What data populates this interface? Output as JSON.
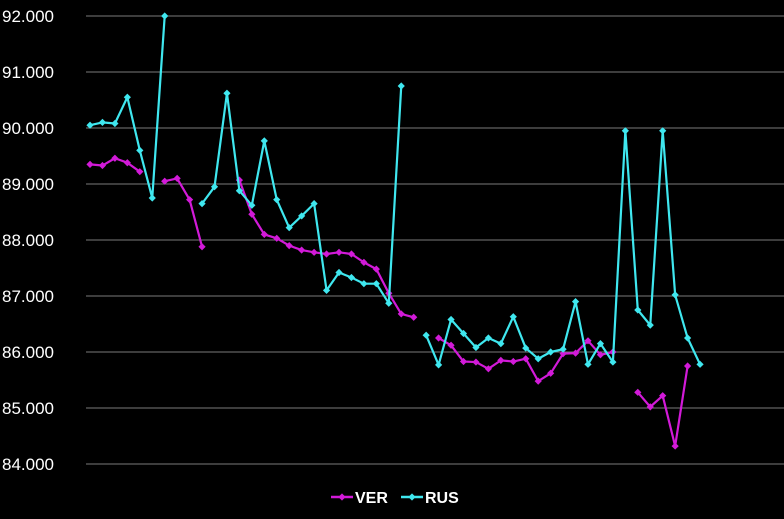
{
  "chart_data": {
    "type": "line",
    "title": "",
    "xlabel": "",
    "ylabel": "",
    "ylim": [
      84,
      92
    ],
    "yticks": [
      "84.000",
      "85.000",
      "86.000",
      "87.000",
      "88.000",
      "89.000",
      "90.000",
      "91.000",
      "92.000"
    ],
    "grid": true,
    "legend": "bottom-center",
    "x": [
      1,
      2,
      3,
      4,
      5,
      6,
      7,
      8,
      9,
      10,
      11,
      12,
      13,
      14,
      15,
      16,
      17,
      18,
      19,
      20,
      21,
      22,
      23,
      24,
      25,
      26,
      27,
      28,
      29,
      30,
      31,
      32,
      33,
      34,
      35,
      36,
      37,
      38,
      39,
      40,
      41,
      42,
      43,
      44,
      45,
      46,
      47,
      48,
      49,
      50,
      51
    ],
    "series": [
      {
        "name": "VER",
        "color": "#d21ad8",
        "values": [
          89.35,
          89.33,
          89.46,
          89.38,
          89.22,
          null,
          89.05,
          89.1,
          88.72,
          87.88,
          null,
          null,
          89.07,
          88.46,
          88.1,
          88.03,
          87.9,
          87.82,
          87.78,
          87.75,
          87.78,
          87.75,
          87.6,
          87.48,
          87.05,
          86.68,
          86.62,
          null,
          86.25,
          86.12,
          85.83,
          85.82,
          85.7,
          85.85,
          85.83,
          85.88,
          85.48,
          85.62,
          85.97,
          85.98,
          86.2,
          85.95,
          86.0,
          null,
          85.28,
          85.02,
          85.22,
          84.32,
          85.75,
          null,
          null
        ]
      },
      {
        "name": "RUS",
        "color": "#3fe7ef",
        "values": [
          90.05,
          90.1,
          90.08,
          90.55,
          89.6,
          88.75,
          92.0,
          null,
          null,
          88.65,
          88.95,
          90.62,
          88.88,
          88.62,
          89.77,
          88.72,
          88.22,
          88.43,
          88.65,
          87.1,
          87.42,
          87.33,
          87.22,
          87.22,
          86.87,
          90.75,
          null,
          86.3,
          85.77,
          86.58,
          86.33,
          86.08,
          86.25,
          86.15,
          86.63,
          86.07,
          85.88,
          86.0,
          86.05,
          86.9,
          85.78,
          86.15,
          85.82,
          89.95,
          86.75,
          86.48,
          89.95,
          87.02,
          86.25,
          85.78,
          null
        ]
      }
    ]
  }
}
